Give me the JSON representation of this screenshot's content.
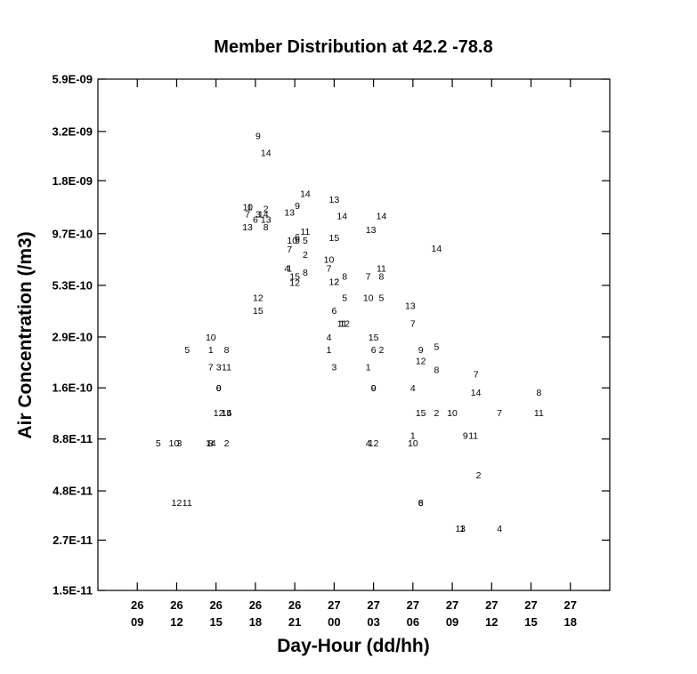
{
  "chart_data": {
    "type": "scatter",
    "title": "Member Distribution at  42.2  -78.8",
    "xlabel": "Day-Hour (dd/hh)",
    "ylabel": "Air Concentration (/m3)",
    "yscale": "log",
    "ylim": [
      1.5e-11,
      5.9e-09
    ],
    "xlim": [
      "26 06",
      "27 21"
    ],
    "x_ticks": [
      {
        "x": "26 09",
        "day": "26",
        "hour": "09"
      },
      {
        "x": "26 12",
        "day": "26",
        "hour": "12"
      },
      {
        "x": "26 15",
        "day": "26",
        "hour": "15"
      },
      {
        "x": "26 18",
        "day": "26",
        "hour": "18"
      },
      {
        "x": "26 21",
        "day": "26",
        "hour": "21"
      },
      {
        "x": "27 00",
        "day": "27",
        "hour": "00"
      },
      {
        "x": "27 03",
        "day": "27",
        "hour": "03"
      },
      {
        "x": "27 06",
        "day": "27",
        "hour": "06"
      },
      {
        "x": "27 09",
        "day": "27",
        "hour": "09"
      },
      {
        "x": "27 12",
        "day": "27",
        "hour": "12"
      },
      {
        "x": "27 15",
        "day": "27",
        "hour": "15"
      },
      {
        "x": "27 18",
        "day": "27",
        "hour": "18"
      }
    ],
    "y_ticks": [
      {
        "label": "5.9E-09",
        "value": 5.9e-09
      },
      {
        "label": "3.2E-09",
        "value": 3.2e-09
      },
      {
        "label": "1.8E-09",
        "value": 1.8e-09
      },
      {
        "label": "9.7E-10",
        "value": 9.7e-10
      },
      {
        "label": "5.3E-10",
        "value": 5.3e-10
      },
      {
        "label": "2.9E-10",
        "value": 2.9e-10
      },
      {
        "label": "1.6E-10",
        "value": 1.6e-10
      },
      {
        "label": "8.8E-11",
        "value": 8.8e-11
      },
      {
        "label": "4.8E-11",
        "value": 4.8e-11
      },
      {
        "label": "2.7E-11",
        "value": 2.7e-11
      },
      {
        "label": "1.5E-11",
        "value": 1.5e-11
      }
    ],
    "grid": false,
    "points": [
      {
        "label": "5",
        "x": "26 10:36",
        "y": 8.4e-11
      },
      {
        "label": "10",
        "x": "26 11:48",
        "y": 8.4e-11
      },
      {
        "label": "3",
        "x": "26 12:12",
        "y": 8.4e-11
      },
      {
        "label": "12",
        "x": "26 12:00",
        "y": 4.2e-11
      },
      {
        "label": "11",
        "x": "26 12:48",
        "y": 4.2e-11
      },
      {
        "label": "5",
        "x": "26 12:48",
        "y": 2.5e-10
      },
      {
        "label": "10",
        "x": "26 14:36",
        "y": 2.9e-10
      },
      {
        "label": "1",
        "x": "26 14:36",
        "y": 2.5e-10
      },
      {
        "label": "8",
        "x": "26 15:48",
        "y": 2.5e-10
      },
      {
        "label": "7",
        "x": "26 14:36",
        "y": 2.05e-10
      },
      {
        "label": "3",
        "x": "26 15:12",
        "y": 2.05e-10
      },
      {
        "label": "11",
        "x": "26 15:48",
        "y": 2.05e-10
      },
      {
        "label": "6",
        "x": "26 15:12",
        "y": 1.6e-10
      },
      {
        "label": "0",
        "x": "26 15:12",
        "y": 1.6e-10
      },
      {
        "label": "12",
        "x": "26 15:12",
        "y": 1.2e-10
      },
      {
        "label": "15",
        "x": "26 15:48",
        "y": 1.2e-10
      },
      {
        "label": "14",
        "x": "26 15:48",
        "y": 1.2e-10
      },
      {
        "label": "14",
        "x": "26 14:36",
        "y": 8.4e-11
      },
      {
        "label": "8",
        "x": "26 14:36",
        "y": 8.4e-11
      },
      {
        "label": "2",
        "x": "26 15:48",
        "y": 8.4e-11
      },
      {
        "label": "9",
        "x": "26 18:12",
        "y": 3.05e-09
      },
      {
        "label": "14",
        "x": "26 18:48",
        "y": 2.5e-09
      },
      {
        "label": "14",
        "x": "26 21:48",
        "y": 1.55e-09
      },
      {
        "label": "13",
        "x": "27 00:00",
        "y": 1.45e-09
      },
      {
        "label": "9",
        "x": "26 21:12",
        "y": 1.35e-09
      },
      {
        "label": "13",
        "x": "26 20:36",
        "y": 1.25e-09
      },
      {
        "label": "11",
        "x": "26 17:24",
        "y": 1.33e-09
      },
      {
        "label": "0",
        "x": "26 17:36",
        "y": 1.33e-09
      },
      {
        "label": "2",
        "x": "26 18:48",
        "y": 1.3e-09
      },
      {
        "label": "7",
        "x": "26 17:24",
        "y": 1.22e-09
      },
      {
        "label": "3",
        "x": "26 18:12",
        "y": 1.22e-09
      },
      {
        "label": "14",
        "x": "26 18:36",
        "y": 1.22e-09
      },
      {
        "label": "6",
        "x": "26 18:00",
        "y": 1.15e-09
      },
      {
        "label": "13",
        "x": "26 18:48",
        "y": 1.15e-09
      },
      {
        "label": "13",
        "x": "26 17:24",
        "y": 1.05e-09
      },
      {
        "label": "8",
        "x": "26 18:48",
        "y": 1.05e-09
      },
      {
        "label": "14",
        "x": "27 00:36",
        "y": 1.2e-09
      },
      {
        "label": "14",
        "x": "27 03:36",
        "y": 1.2e-09
      },
      {
        "label": "13",
        "x": "27 02:48",
        "y": 1.02e-09
      },
      {
        "label": "11",
        "x": "26 21:48",
        "y": 1e-09
      },
      {
        "label": "10",
        "x": "26 20:48",
        "y": 9e-10
      },
      {
        "label": "6",
        "x": "26 21:12",
        "y": 9.4e-10
      },
      {
        "label": "9",
        "x": "26 21:12",
        "y": 9e-10
      },
      {
        "label": "5",
        "x": "26 21:48",
        "y": 9e-10
      },
      {
        "label": "15",
        "x": "27 00:00",
        "y": 9.3e-10
      },
      {
        "label": "7",
        "x": "26 20:36",
        "y": 8.1e-10
      },
      {
        "label": "2",
        "x": "26 21:48",
        "y": 7.6e-10
      },
      {
        "label": "14",
        "x": "27 07:48",
        "y": 8.2e-10
      },
      {
        "label": "10",
        "x": "26 23:36",
        "y": 7.2e-10
      },
      {
        "label": "4",
        "x": "26 20:24",
        "y": 6.5e-10
      },
      {
        "label": "1",
        "x": "26 20:36",
        "y": 6.5e-10
      },
      {
        "label": "7",
        "x": "26 23:36",
        "y": 6.5e-10
      },
      {
        "label": "11",
        "x": "27 03:36",
        "y": 6.5e-10
      },
      {
        "label": "8",
        "x": "26 21:48",
        "y": 6.2e-10
      },
      {
        "label": "15",
        "x": "26 21:00",
        "y": 5.9e-10
      },
      {
        "label": "12",
        "x": "26 21:00",
        "y": 5.5e-10
      },
      {
        "label": "7",
        "x": "27 02:36",
        "y": 5.9e-10
      },
      {
        "label": "8",
        "x": "27 03:36",
        "y": 5.9e-10
      },
      {
        "label": "8",
        "x": "27 00:48",
        "y": 5.9e-10
      },
      {
        "label": "12",
        "x": "27 00:00",
        "y": 5.55e-10
      },
      {
        "label": "2",
        "x": "27 00:12",
        "y": 5.55e-10
      },
      {
        "label": "12",
        "x": "26 18:12",
        "y": 4.6e-10
      },
      {
        "label": "5",
        "x": "27 00:48",
        "y": 4.6e-10
      },
      {
        "label": "10",
        "x": "27 02:36",
        "y": 4.6e-10
      },
      {
        "label": "5",
        "x": "27 03:36",
        "y": 4.6e-10
      },
      {
        "label": "13",
        "x": "27 05:48",
        "y": 4.2e-10
      },
      {
        "label": "15",
        "x": "26 18:12",
        "y": 3.95e-10
      },
      {
        "label": "6",
        "x": "27 00:00",
        "y": 3.95e-10
      },
      {
        "label": "7",
        "x": "27 06:00",
        "y": 3.4e-10
      },
      {
        "label": "11",
        "x": "27 00:36",
        "y": 3.4e-10
      },
      {
        "label": "12",
        "x": "27 00:48",
        "y": 3.4e-10
      },
      {
        "label": "4",
        "x": "26 23:36",
        "y": 2.9e-10
      },
      {
        "label": "15",
        "x": "27 03:00",
        "y": 2.9e-10
      },
      {
        "label": "1",
        "x": "26 23:36",
        "y": 2.5e-10
      },
      {
        "label": "6",
        "x": "27 03:00",
        "y": 2.5e-10
      },
      {
        "label": "2",
        "x": "27 03:36",
        "y": 2.5e-10
      },
      {
        "label": "9",
        "x": "27 06:36",
        "y": 2.5e-10
      },
      {
        "label": "5",
        "x": "27 07:48",
        "y": 2.6e-10
      },
      {
        "label": "12",
        "x": "27 06:36",
        "y": 2.2e-10
      },
      {
        "label": "3",
        "x": "27 00:00",
        "y": 2.05e-10
      },
      {
        "label": "1",
        "x": "27 02:36",
        "y": 2.05e-10
      },
      {
        "label": "8",
        "x": "27 07:48",
        "y": 1.98e-10
      },
      {
        "label": "7",
        "x": "27 10:48",
        "y": 1.88e-10
      },
      {
        "label": "9",
        "x": "27 03:00",
        "y": 1.6e-10
      },
      {
        "label": "0",
        "x": "27 03:00",
        "y": 1.6e-10
      },
      {
        "label": "4",
        "x": "27 06:00",
        "y": 1.6e-10
      },
      {
        "label": "14",
        "x": "27 10:48",
        "y": 1.52e-10
      },
      {
        "label": "8",
        "x": "27 15:36",
        "y": 1.52e-10
      },
      {
        "label": "15",
        "x": "27 06:36",
        "y": 1.2e-10
      },
      {
        "label": "2",
        "x": "27 07:48",
        "y": 1.2e-10
      },
      {
        "label": "10",
        "x": "27 09:00",
        "y": 1.2e-10
      },
      {
        "label": "7",
        "x": "27 12:36",
        "y": 1.2e-10
      },
      {
        "label": "11",
        "x": "27 15:36",
        "y": 1.2e-10
      },
      {
        "label": "1",
        "x": "27 06:00",
        "y": 9.2e-11
      },
      {
        "label": "9",
        "x": "27 10:00",
        "y": 9.2e-11
      },
      {
        "label": "11",
        "x": "27 10:36",
        "y": 9.2e-11
      },
      {
        "label": "4",
        "x": "27 02:36",
        "y": 8.4e-11
      },
      {
        "label": "12",
        "x": "27 03:00",
        "y": 8.4e-11
      },
      {
        "label": "10",
        "x": "27 06:00",
        "y": 8.4e-11
      },
      {
        "label": "2",
        "x": "27 11:00",
        "y": 5.8e-11
      },
      {
        "label": "6",
        "x": "27 06:36",
        "y": 4.2e-11
      },
      {
        "label": "8",
        "x": "27 06:36",
        "y": 4.2e-11
      },
      {
        "label": "11",
        "x": "27 09:36",
        "y": 3.1e-11
      },
      {
        "label": "3",
        "x": "27 09:48",
        "y": 3.1e-11
      },
      {
        "label": "4",
        "x": "27 12:36",
        "y": 3.1e-11
      }
    ]
  }
}
